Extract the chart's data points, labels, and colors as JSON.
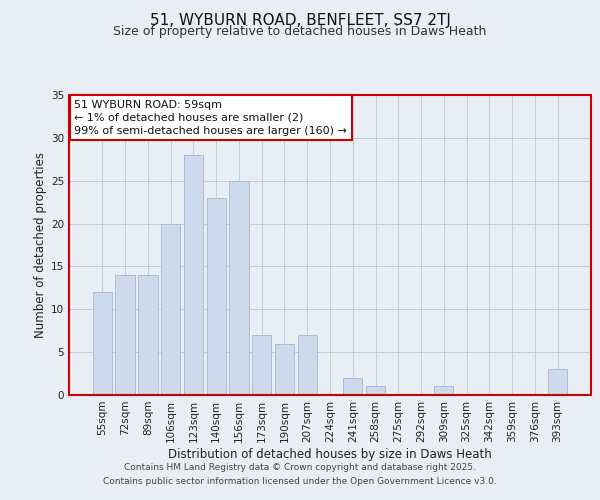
{
  "title": "51, WYBURN ROAD, BENFLEET, SS7 2TJ",
  "subtitle": "Size of property relative to detached houses in Daws Heath",
  "xlabel": "Distribution of detached houses by size in Daws Heath",
  "ylabel": "Number of detached properties",
  "categories": [
    "55sqm",
    "72sqm",
    "89sqm",
    "106sqm",
    "123sqm",
    "140sqm",
    "156sqm",
    "173sqm",
    "190sqm",
    "207sqm",
    "224sqm",
    "241sqm",
    "258sqm",
    "275sqm",
    "292sqm",
    "309sqm",
    "325sqm",
    "342sqm",
    "359sqm",
    "376sqm",
    "393sqm"
  ],
  "values": [
    12,
    14,
    14,
    20,
    28,
    23,
    25,
    7,
    6,
    7,
    0,
    2,
    1,
    0,
    0,
    1,
    0,
    0,
    0,
    0,
    3
  ],
  "bar_color": "#ccdaeb",
  "bar_edge_color": "#aabdd4",
  "ylim": [
    0,
    35
  ],
  "yticks": [
    0,
    5,
    10,
    15,
    20,
    25,
    30,
    35
  ],
  "annotation_box_text": "51 WYBURN ROAD: 59sqm\n← 1% of detached houses are smaller (2)\n99% of semi-detached houses are larger (160) →",
  "background_color": "#e8eef4",
  "plot_background": "#e8eef4",
  "red_border_color": "#cc0000",
  "footer_line1": "Contains HM Land Registry data © Crown copyright and database right 2025.",
  "footer_line2": "Contains public sector information licensed under the Open Government Licence v3.0.",
  "title_fontsize": 11,
  "subtitle_fontsize": 9,
  "axis_label_fontsize": 8.5,
  "tick_fontsize": 7.5,
  "annotation_fontsize": 8,
  "footer_fontsize": 6.5
}
